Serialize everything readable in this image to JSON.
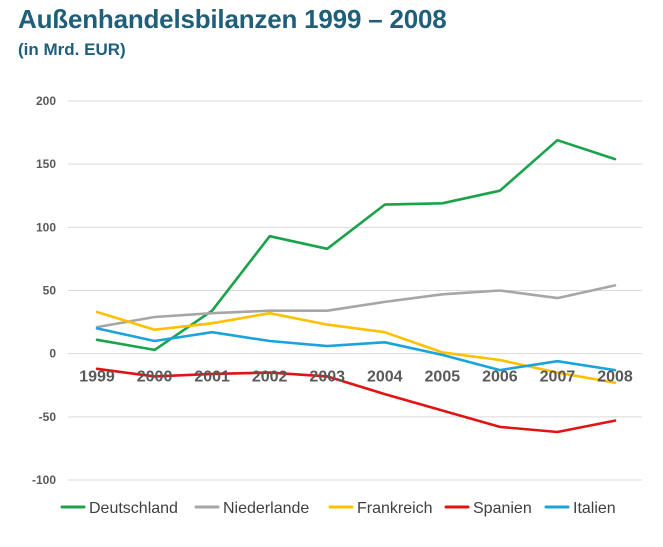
{
  "chart_data": {
    "type": "line",
    "title": "Außenhandelsbilanzen 1999 – 2008",
    "subtitle": "(in Mrd. EUR)",
    "xlabel": "",
    "ylabel": "",
    "categories": [
      "1999",
      "2000",
      "2001",
      "2002",
      "2003",
      "2004",
      "2005",
      "2006",
      "2007",
      "2008"
    ],
    "ylim": [
      -100,
      200
    ],
    "yticks": [
      200,
      150,
      100,
      50,
      0,
      -50,
      -100
    ],
    "grid": true,
    "legend_position": "bottom",
    "series": [
      {
        "name": "Deutschland",
        "color": "#1aa34a",
        "values": [
          11,
          3,
          34,
          93,
          83,
          118,
          119,
          129,
          169,
          154
        ]
      },
      {
        "name": "Niederlande",
        "color": "#a6a6a6",
        "values": [
          21,
          29,
          32,
          34,
          34,
          41,
          47,
          50,
          44,
          54
        ]
      },
      {
        "name": "Frankreich",
        "color": "#ffc000",
        "values": [
          33,
          19,
          24,
          32,
          23,
          17,
          1,
          -5,
          -15,
          -23
        ]
      },
      {
        "name": "Spanien",
        "color": "#e21313",
        "values": [
          -12,
          -18,
          -16,
          -15,
          -18,
          -32,
          -45,
          -58,
          -62,
          -53
        ]
      },
      {
        "name": "Italien",
        "color": "#1aa3dc",
        "values": [
          20,
          10,
          17,
          10,
          6,
          9,
          -1,
          -13,
          -6,
          -13
        ]
      }
    ]
  }
}
